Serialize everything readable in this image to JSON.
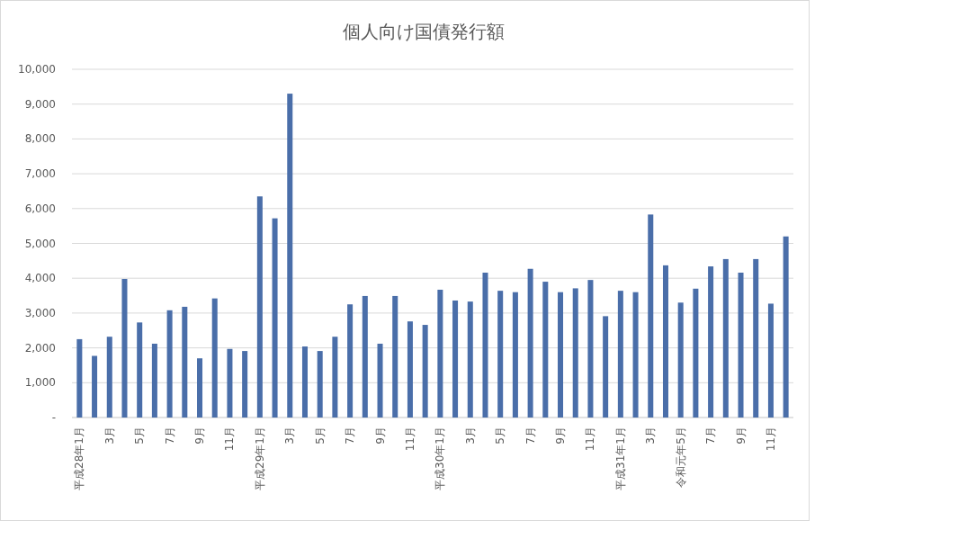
{
  "chart_data": {
    "type": "bar",
    "title": "個人向け国債発行額",
    "categories": [
      "平成28年1月",
      null,
      "3月",
      null,
      "5月",
      null,
      "7月",
      null,
      "9月",
      null,
      "11月",
      null,
      "平成29年1月",
      null,
      "3月",
      null,
      "5月",
      null,
      "7月",
      null,
      "9月",
      null,
      "11月",
      null,
      "平成30年1月",
      null,
      "3月",
      null,
      "5月",
      null,
      "7月",
      null,
      "9月",
      null,
      "11月",
      null,
      "平成31年1月",
      null,
      "3月",
      null,
      "令和元年5月",
      null,
      "7月",
      null,
      "9月",
      null,
      "11月",
      null
    ],
    "values": [
      2250,
      1770,
      2320,
      3980,
      2730,
      2120,
      3080,
      3180,
      1700,
      3420,
      1970,
      1910,
      6350,
      5720,
      9300,
      2040,
      1910,
      2320,
      3250,
      3490,
      2120,
      3490,
      2760,
      2660,
      3670,
      3360,
      3330,
      4160,
      3640,
      3600,
      4270,
      3900,
      3600,
      3710,
      3950,
      2910,
      3640,
      3600,
      5830,
      4370,
      3300,
      3700,
      4340,
      4550,
      4160,
      4550,
      3270,
      5200
    ],
    "color": "#4a6ea9",
    "ylim": [
      0,
      10000
    ],
    "yticks": [
      {
        "value": 0,
        "label": "-"
      },
      {
        "value": 1000,
        "label": "1,000"
      },
      {
        "value": 2000,
        "label": "2,000"
      },
      {
        "value": 3000,
        "label": "3,000"
      },
      {
        "value": 4000,
        "label": "4,000"
      },
      {
        "value": 5000,
        "label": "5,000"
      },
      {
        "value": 6000,
        "label": "6,000"
      },
      {
        "value": 7000,
        "label": "7,000"
      },
      {
        "value": 8000,
        "label": "8,000"
      },
      {
        "value": 9000,
        "label": "9,000"
      },
      {
        "value": 10000,
        "label": "10,000"
      }
    ],
    "grid": "y"
  }
}
